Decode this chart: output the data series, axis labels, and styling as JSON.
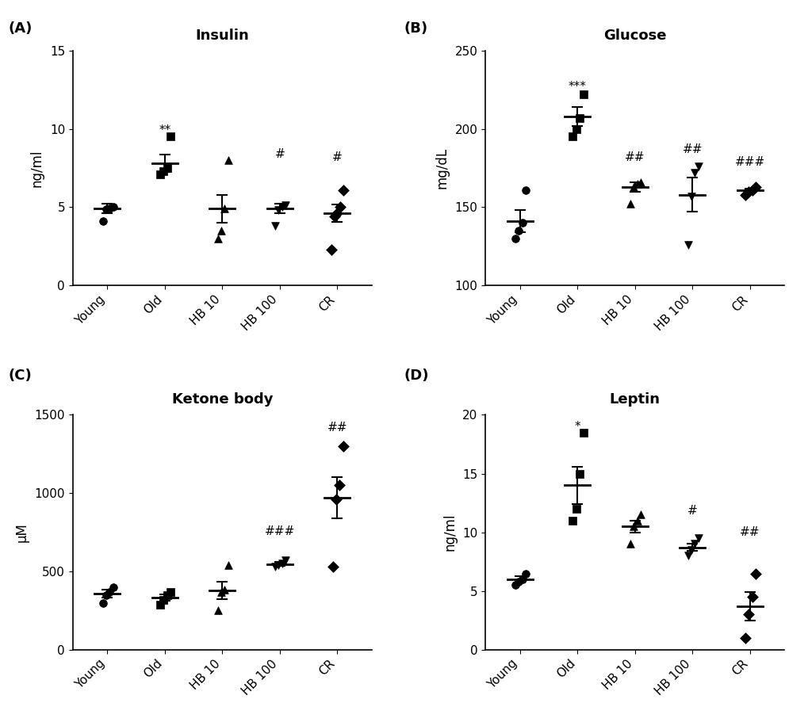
{
  "panel_A": {
    "title": "Insulin",
    "ylabel": "ng/ml",
    "ylim": [
      0,
      15
    ],
    "yticks": [
      0,
      5,
      10,
      15
    ],
    "categories": [
      "Young",
      "Old",
      "HB 10",
      "HB 100",
      "CR"
    ],
    "markers": [
      "o",
      "s",
      "^",
      "v",
      "D"
    ],
    "data": [
      [
        4.1,
        4.85,
        4.9,
        5.0
      ],
      [
        7.1,
        7.3,
        7.5,
        9.5
      ],
      [
        3.0,
        3.5,
        4.9,
        8.0
      ],
      [
        3.8,
        4.8,
        5.0,
        5.1
      ],
      [
        2.3,
        4.4,
        4.6,
        5.0,
        6.1
      ]
    ],
    "means": [
      4.9,
      7.8,
      4.9,
      4.9,
      4.6
    ],
    "sems": [
      0.3,
      0.55,
      0.9,
      0.3,
      0.55
    ],
    "sig_labels": [
      "",
      "**",
      "",
      "#",
      "#"
    ],
    "sig_y": [
      null,
      9.5,
      null,
      8.0,
      7.8
    ]
  },
  "panel_B": {
    "title": "Glucose",
    "ylabel": "mg/dL",
    "ylim": [
      100,
      250
    ],
    "yticks": [
      100,
      150,
      200,
      250
    ],
    "categories": [
      "Young",
      "Old",
      "HB 10",
      "HB 100",
      "CR"
    ],
    "markers": [
      "o",
      "s",
      "^",
      "v",
      "D"
    ],
    "data": [
      [
        130,
        135,
        140,
        161
      ],
      [
        195,
        200,
        207,
        222
      ],
      [
        152,
        163,
        165,
        166
      ],
      [
        126,
        157,
        172,
        176
      ],
      [
        158,
        160,
        161,
        163
      ]
    ],
    "means": [
      141,
      208,
      163,
      158,
      161
    ],
    "sems": [
      7,
      6,
      3,
      11,
      1
    ],
    "sig_labels": [
      "",
      "***",
      "##",
      "##",
      "###"
    ],
    "sig_y": [
      null,
      223,
      178,
      183,
      175
    ]
  },
  "panel_C": {
    "title": "Ketone body",
    "ylabel": "μM",
    "ylim": [
      0,
      1500
    ],
    "yticks": [
      0,
      500,
      1000,
      1500
    ],
    "categories": [
      "Young",
      "Old",
      "HB 10",
      "HB 100",
      "CR"
    ],
    "markers": [
      "o",
      "s",
      "^",
      "v",
      "D"
    ],
    "data": [
      [
        300,
        350,
        370,
        400
      ],
      [
        290,
        320,
        350,
        370
      ],
      [
        250,
        370,
        385,
        540
      ],
      [
        530,
        540,
        550,
        570
      ],
      [
        530,
        960,
        1050,
        1300
      ]
    ],
    "means": [
      360,
      335,
      380,
      548,
      970
    ],
    "sems": [
      25,
      20,
      55,
      12,
      130
    ],
    "sig_labels": [
      "",
      "",
      "",
      "###",
      "##"
    ],
    "sig_y": [
      null,
      null,
      null,
      720,
      1380
    ]
  },
  "panel_D": {
    "title": "Leptin",
    "ylabel": "ng/ml",
    "ylim": [
      0,
      20
    ],
    "yticks": [
      0,
      5,
      10,
      15,
      20
    ],
    "categories": [
      "Young",
      "Old",
      "HB 10",
      "HB 100",
      "CR"
    ],
    "markers": [
      "o",
      "s",
      "^",
      "v",
      "D"
    ],
    "data": [
      [
        5.5,
        5.8,
        6.0,
        6.5
      ],
      [
        11.0,
        12.0,
        15.0,
        18.5
      ],
      [
        9.0,
        10.5,
        11.0,
        11.5
      ],
      [
        8.0,
        8.5,
        9.0,
        9.5
      ],
      [
        1.0,
        3.0,
        4.5,
        6.5
      ]
    ],
    "means": [
      6.0,
      14.0,
      10.5,
      8.7,
      3.7
    ],
    "sems": [
      0.25,
      1.6,
      0.5,
      0.3,
      1.2
    ],
    "sig_labels": [
      "",
      "*",
      "",
      "#",
      "##"
    ],
    "sig_y": [
      null,
      18.5,
      null,
      11.3,
      9.5
    ]
  },
  "panel_labels": [
    "(A)",
    "(B)",
    "(C)",
    "(D)"
  ],
  "background_color": "#ffffff",
  "marker_color": "#000000",
  "marker_size": 7,
  "errorbar_linewidth": 1.5,
  "errorbar_capsize": 5
}
